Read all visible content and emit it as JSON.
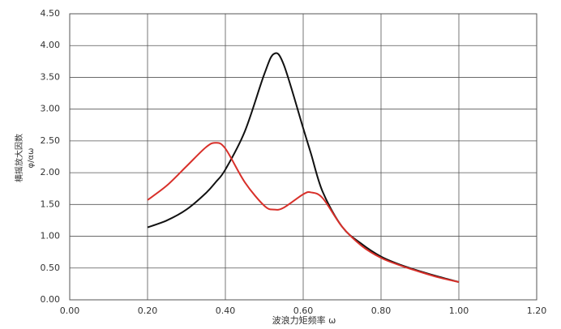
{
  "chart_data": {
    "type": "line",
    "x_label": "波浪力矩频率 ω",
    "y_label": "横摇放大因数",
    "y_label_unit": "φ/αω",
    "x": [
      0.2,
      0.25,
      0.3,
      0.35,
      0.375,
      0.4,
      0.45,
      0.5,
      0.525,
      0.55,
      0.6,
      0.62,
      0.65,
      0.7,
      0.75,
      0.8,
      0.85,
      0.9,
      0.95,
      1.0
    ],
    "series": [
      {
        "color": "#111111",
        "values": [
          1.14,
          1.25,
          1.42,
          1.68,
          1.85,
          2.05,
          2.65,
          3.55,
          3.87,
          3.7,
          2.7,
          2.3,
          1.7,
          1.15,
          0.88,
          0.68,
          0.55,
          0.45,
          0.36,
          0.28
        ]
      },
      {
        "color": "#d8302a",
        "values": [
          1.57,
          1.8,
          2.1,
          2.4,
          2.47,
          2.38,
          1.85,
          1.48,
          1.42,
          1.45,
          1.66,
          1.69,
          1.6,
          1.15,
          0.85,
          0.66,
          0.54,
          0.44,
          0.35,
          0.28
        ]
      }
    ],
    "xlim": [
      0,
      1.2
    ],
    "xticks": [
      {
        "value": 0,
        "label": "0.00"
      },
      {
        "value": 0.2,
        "label": "0.20"
      },
      {
        "value": 0.4,
        "label": "0.40"
      },
      {
        "value": 0.6,
        "label": "0.60"
      },
      {
        "value": 0.8,
        "label": "0.80"
      },
      {
        "value": 1.0,
        "label": "1.00"
      },
      {
        "value": 1.2,
        "label": "1.20"
      }
    ],
    "ylim": [
      0,
      4.5
    ],
    "yticks": [
      {
        "value": 0,
        "label": "0.00"
      },
      {
        "value": 0.5,
        "label": "0.50"
      },
      {
        "value": 1.0,
        "label": "1.00"
      },
      {
        "value": 1.5,
        "label": "1.50"
      },
      {
        "value": 2.0,
        "label": "2.00"
      },
      {
        "value": 2.5,
        "label": "2.50"
      },
      {
        "value": 3.0,
        "label": "3.00"
      },
      {
        "value": 3.5,
        "label": "3.50"
      },
      {
        "value": 4.0,
        "label": "4.00"
      },
      {
        "value": 4.5,
        "label": "4.50"
      }
    ],
    "grid": true
  }
}
